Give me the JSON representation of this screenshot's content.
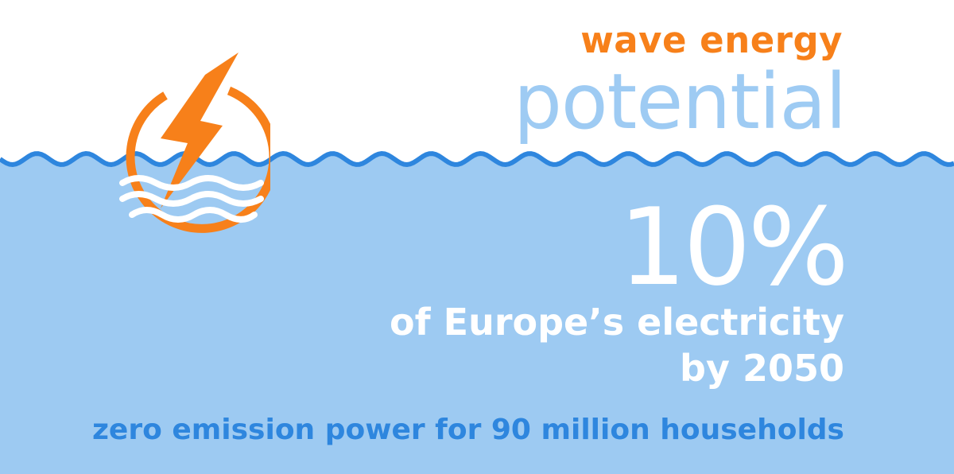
{
  "heading": {
    "line1": "wave energy",
    "line2": "potential"
  },
  "stat": {
    "value": "10%",
    "label_line1": "of Europe’s electricity",
    "label_line2": "by 2050"
  },
  "footnote": "zero emission power for 90 million households",
  "icons": {
    "logo": "wave-energy-bolt-icon"
  },
  "colors": {
    "orange": "#f7801a",
    "light_blue": "#9ecbf3",
    "water": "#9dcaf2",
    "wave_line": "#2e86de",
    "white": "#ffffff"
  }
}
